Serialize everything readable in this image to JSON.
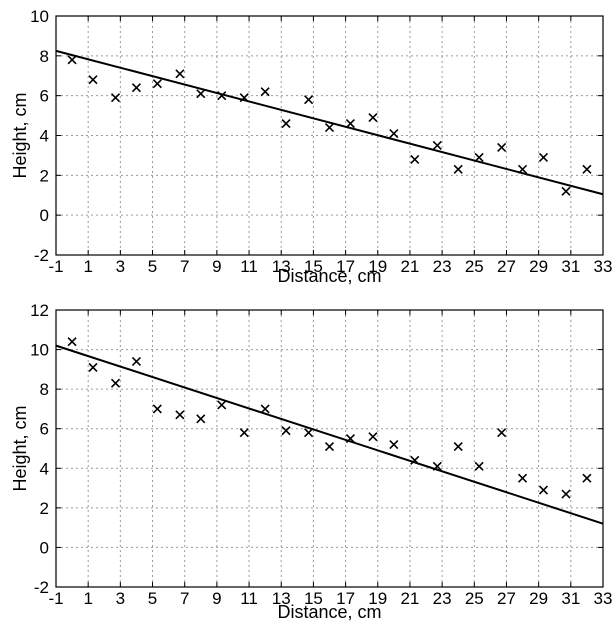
{
  "chart_data": [
    {
      "type": "scatter",
      "title": "",
      "xlabel": "Distance, cm",
      "ylabel": "Height, cm",
      "xlim": [
        -1,
        33
      ],
      "ylim": [
        -2,
        10
      ],
      "xticks": [
        -1,
        1,
        3,
        5,
        7,
        9,
        11,
        13,
        15,
        17,
        19,
        21,
        23,
        25,
        27,
        29,
        31,
        33
      ],
      "yticks": [
        -2,
        0,
        2,
        4,
        6,
        8,
        10
      ],
      "grid": true,
      "series": [
        {
          "marker": "x",
          "x": [
            0,
            1.3,
            2.7,
            4,
            5.3,
            6.7,
            8,
            9.3,
            10.7,
            12,
            13.3,
            14.7,
            16,
            17.3,
            18.7,
            20,
            21.3,
            22.7,
            24,
            25.3,
            26.7,
            28,
            29.3,
            30.7,
            32
          ],
          "y": [
            7.8,
            6.8,
            5.9,
            6.4,
            6.6,
            7.1,
            6.1,
            6.0,
            5.9,
            6.2,
            4.6,
            5.8,
            4.4,
            4.6,
            4.9,
            4.1,
            2.8,
            3.5,
            2.3,
            2.9,
            3.4,
            2.3,
            2.9,
            1.2,
            2.3
          ]
        },
        {
          "type": "line",
          "x": [
            -1,
            33
          ],
          "y": [
            8.25,
            1.05
          ]
        }
      ]
    },
    {
      "type": "scatter",
      "title": "",
      "xlabel": "Distance, cm",
      "ylabel": "Height, cm",
      "xlim": [
        -1,
        33
      ],
      "ylim": [
        -2,
        12
      ],
      "xticks": [
        -1,
        1,
        3,
        5,
        7,
        9,
        11,
        13,
        15,
        17,
        19,
        21,
        23,
        25,
        27,
        29,
        31,
        33
      ],
      "yticks": [
        -2,
        0,
        2,
        4,
        6,
        8,
        10,
        12
      ],
      "grid": true,
      "series": [
        {
          "marker": "x",
          "x": [
            0,
            1.3,
            2.7,
            4,
            5.3,
            6.7,
            8,
            9.3,
            10.7,
            12,
            13.3,
            14.7,
            16,
            17.3,
            18.7,
            20,
            21.3,
            22.7,
            24,
            25.3,
            26.7,
            28,
            29.3,
            30.7,
            32
          ],
          "y": [
            10.4,
            9.1,
            8.3,
            9.4,
            7.0,
            6.7,
            6.5,
            7.2,
            5.8,
            7.0,
            5.9,
            5.8,
            5.1,
            5.5,
            5.6,
            5.2,
            4.4,
            4.1,
            5.1,
            4.1,
            5.8,
            3.5,
            2.9,
            2.7,
            3.5
          ]
        },
        {
          "type": "line",
          "x": [
            -1,
            33
          ],
          "y": [
            10.2,
            1.2
          ]
        }
      ]
    }
  ]
}
